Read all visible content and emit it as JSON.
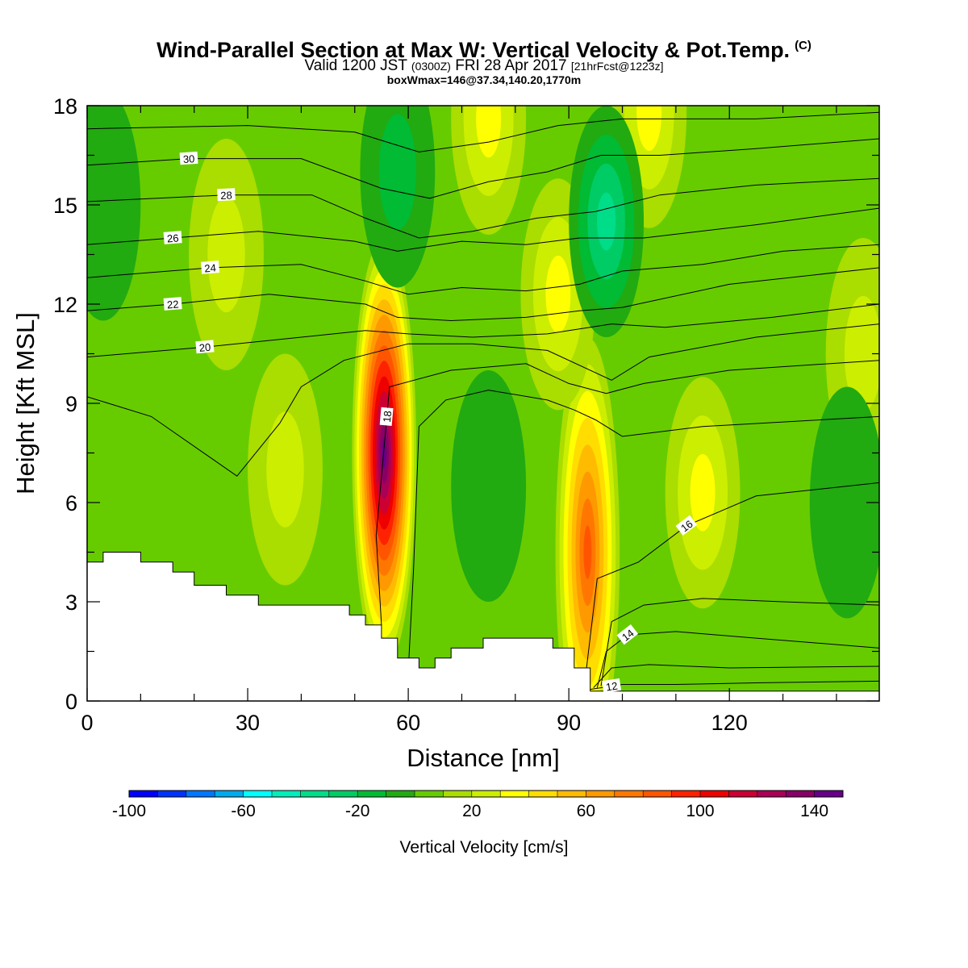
{
  "chart_data": {
    "type": "heatmap",
    "title": "Wind-Parallel Section at Max W: Vertical Velocity & Pot.Temp.",
    "title_mark": "(C)",
    "subtitle_main": "Valid 1200 JST",
    "subtitle_z": "(0300Z)",
    "subtitle_date": "FRI 28 Apr 2017",
    "subtitle_fcst": "[21hrFcst@1223z]",
    "subtitle3": "boxWmax=146@37.34,140.20,1770m",
    "xlabel": "Distance [nm]",
    "ylabel": "Height [Kft MSL]",
    "xlim": [
      0,
      148
    ],
    "ylim": [
      0,
      18
    ],
    "x_ticks": [
      0,
      30,
      60,
      90,
      120
    ],
    "y_ticks": [
      0,
      3,
      6,
      9,
      12,
      15,
      18
    ],
    "colorbar": {
      "title": "Vertical Velocity [cm/s]",
      "min": -100,
      "max": 150,
      "step": 10,
      "tick_labels": [
        "-100",
        "-60",
        "-20",
        "20",
        "60",
        "100",
        "140"
      ],
      "colors": [
        "#0000ff",
        "#0033ff",
        "#0077ff",
        "#00aaee",
        "#00ffff",
        "#00eebb",
        "#00dd88",
        "#00cc66",
        "#00bb33",
        "#22aa11",
        "#66cc00",
        "#aadd00",
        "#ccee00",
        "#ffff00",
        "#ffdd00",
        "#ffbb00",
        "#ff9900",
        "#ff7700",
        "#ff5500",
        "#ff2200",
        "#ee0000",
        "#cc0033",
        "#aa0055",
        "#880066",
        "#660088"
      ]
    },
    "terrain_kft": [
      [
        0,
        4.2
      ],
      [
        3,
        4.2
      ],
      [
        3,
        4.5
      ],
      [
        10,
        4.5
      ],
      [
        10,
        4.2
      ],
      [
        16,
        4.2
      ],
      [
        16,
        3.9
      ],
      [
        20,
        3.9
      ],
      [
        20,
        3.5
      ],
      [
        26,
        3.5
      ],
      [
        26,
        3.2
      ],
      [
        32,
        3.2
      ],
      [
        32,
        2.9
      ],
      [
        49,
        2.9
      ],
      [
        49,
        2.6
      ],
      [
        52,
        2.6
      ],
      [
        52,
        2.3
      ],
      [
        55,
        2.3
      ],
      [
        55,
        1.9
      ],
      [
        58,
        1.9
      ],
      [
        58,
        1.3
      ],
      [
        62,
        1.3
      ],
      [
        62,
        1.0
      ],
      [
        65,
        1.0
      ],
      [
        65,
        1.3
      ],
      [
        68,
        1.3
      ],
      [
        68,
        1.6
      ],
      [
        74,
        1.6
      ],
      [
        74,
        1.9
      ],
      [
        87,
        1.9
      ],
      [
        87,
        1.6
      ],
      [
        91,
        1.6
      ],
      [
        91,
        1.0
      ],
      [
        94,
        1.0
      ],
      [
        94,
        0.3
      ],
      [
        148,
        0.3
      ]
    ],
    "w_features": [
      {
        "x": 55.5,
        "y": 7.5,
        "w": 140
      },
      {
        "x": 93.5,
        "y": 4.5,
        "w": 80
      },
      {
        "x": 75,
        "y": 17.6,
        "w": 35
      },
      {
        "x": 105,
        "y": 17.8,
        "w": 30
      },
      {
        "x": 88,
        "y": 12.3,
        "w": 30
      },
      {
        "x": 97,
        "y": 14.5,
        "w": -45
      },
      {
        "x": 58,
        "y": 16.0,
        "w": -25
      },
      {
        "x": 115,
        "y": 6.3,
        "w": 30
      },
      {
        "x": 37,
        "y": 7.0,
        "w": 25
      },
      {
        "x": 26,
        "y": 13.5,
        "w": 20
      },
      {
        "x": 145,
        "y": 10.5,
        "w": 25
      },
      {
        "x": 75,
        "y": 6.5,
        "w": -15
      },
      {
        "x": 3,
        "y": 15.0,
        "w": -12
      },
      {
        "x": 142,
        "y": 6.0,
        "w": -12
      }
    ],
    "theta_contours": [
      {
        "value": 12,
        "label": "12",
        "label_x": 98,
        "points": [
          [
            94,
            0.35
          ],
          [
            100,
            0.5
          ],
          [
            110,
            0.5
          ],
          [
            125,
            0.55
          ],
          [
            148,
            0.6
          ]
        ]
      },
      {
        "value": 13,
        "label": "",
        "label_x": null,
        "points": [
          [
            94.6,
            0.4
          ],
          [
            98,
            1.0
          ],
          [
            105,
            1.1
          ],
          [
            120,
            1.0
          ],
          [
            148,
            1.05
          ]
        ]
      },
      {
        "value": 14,
        "label": "14",
        "label_x": 101,
        "points": [
          [
            95.3,
            0.4
          ],
          [
            97,
            1.5
          ],
          [
            101,
            2.0
          ],
          [
            110,
            2.1
          ],
          [
            125,
            1.9
          ],
          [
            148,
            1.6
          ]
        ]
      },
      {
        "value": 15,
        "label": "",
        "label_x": null,
        "points": [
          [
            96,
            0.45
          ],
          [
            98,
            2.4
          ],
          [
            104,
            2.9
          ],
          [
            115,
            3.1
          ],
          [
            130,
            3.0
          ],
          [
            148,
            2.9
          ]
        ]
      },
      {
        "value": 16,
        "label": "16",
        "label_x": 112,
        "points": [
          [
            93.3,
            1.0
          ],
          [
            95.3,
            3.7
          ],
          [
            103,
            4.2
          ],
          [
            112,
            5.3
          ],
          [
            125,
            6.2
          ],
          [
            148,
            6.6
          ]
        ]
      },
      {
        "value": 17,
        "label": "",
        "label_x": null,
        "points": [
          [
            60,
            0.9
          ],
          [
            61,
            4
          ],
          [
            62,
            8.3
          ],
          [
            67,
            9.1
          ],
          [
            75,
            9.4
          ],
          [
            86,
            9.1
          ],
          [
            91,
            8.8
          ],
          [
            95,
            8.5
          ],
          [
            100,
            8.0
          ],
          [
            115,
            8.3
          ],
          [
            148,
            8.6
          ]
        ]
      },
      {
        "value": 18,
        "label": "18",
        "label_x": 56,
        "points": [
          [
            55,
            2.3
          ],
          [
            54,
            5.0
          ],
          [
            56.5,
            9.5
          ],
          [
            68,
            10.0
          ],
          [
            82,
            10.2
          ],
          [
            90,
            9.6
          ],
          [
            97,
            9.3
          ],
          [
            104,
            9.6
          ],
          [
            120,
            10.0
          ],
          [
            148,
            10.3
          ]
        ]
      },
      {
        "value": 19,
        "label": "",
        "label_x": null,
        "points": [
          [
            0,
            9.2
          ],
          [
            12,
            8.6
          ],
          [
            28,
            6.8
          ],
          [
            36,
            8.4
          ],
          [
            40,
            9.5
          ],
          [
            48,
            10.3
          ],
          [
            60,
            10.8
          ],
          [
            72,
            10.8
          ],
          [
            86,
            10.6
          ],
          [
            98,
            9.7
          ],
          [
            105,
            10.4
          ],
          [
            125,
            11.0
          ],
          [
            148,
            11.4
          ]
        ]
      },
      {
        "value": 20,
        "label": "20",
        "label_x": 22,
        "points": [
          [
            0,
            10.4
          ],
          [
            22,
            10.7
          ],
          [
            40,
            11.0
          ],
          [
            52,
            11.2
          ],
          [
            60,
            11.1
          ],
          [
            72,
            11.0
          ],
          [
            86,
            11.1
          ],
          [
            98,
            11.4
          ],
          [
            108,
            11.3
          ],
          [
            128,
            11.6
          ],
          [
            148,
            12.0
          ]
        ]
      },
      {
        "value": 22,
        "label": "22",
        "label_x": 16,
        "points": [
          [
            0,
            11.8
          ],
          [
            16,
            12.0
          ],
          [
            34,
            12.3
          ],
          [
            52,
            12.0
          ],
          [
            58,
            11.6
          ],
          [
            68,
            11.5
          ],
          [
            82,
            11.6
          ],
          [
            92,
            11.8
          ],
          [
            100,
            11.9
          ],
          [
            120,
            12.6
          ],
          [
            148,
            13.1
          ]
        ]
      },
      {
        "value": 24,
        "label": "24",
        "label_x": 23,
        "points": [
          [
            0,
            12.8
          ],
          [
            23,
            13.1
          ],
          [
            40,
            13.2
          ],
          [
            52,
            12.7
          ],
          [
            60,
            12.3
          ],
          [
            70,
            12.5
          ],
          [
            82,
            12.4
          ],
          [
            92,
            12.6
          ],
          [
            100,
            13.0
          ],
          [
            115,
            13.2
          ],
          [
            130,
            13.6
          ],
          [
            148,
            13.8
          ]
        ]
      },
      {
        "value": 26,
        "label": "26",
        "label_x": 16,
        "points": [
          [
            0,
            13.8
          ],
          [
            16,
            14.0
          ],
          [
            32,
            14.2
          ],
          [
            50,
            13.9
          ],
          [
            58,
            13.6
          ],
          [
            70,
            13.9
          ],
          [
            82,
            13.8
          ],
          [
            92,
            14.0
          ],
          [
            104,
            14.0
          ],
          [
            125,
            14.4
          ],
          [
            148,
            14.9
          ]
        ]
      },
      {
        "value": 28,
        "label": "28",
        "label_x": 26,
        "points": [
          [
            0,
            15.1
          ],
          [
            26,
            15.3
          ],
          [
            42,
            15.3
          ],
          [
            52,
            14.6
          ],
          [
            62,
            14.0
          ],
          [
            72,
            14.2
          ],
          [
            84,
            14.6
          ],
          [
            95,
            14.8
          ],
          [
            107,
            15.3
          ],
          [
            125,
            15.6
          ],
          [
            148,
            15.8
          ]
        ]
      },
      {
        "value": 30,
        "label": "30",
        "label_x": 19,
        "points": [
          [
            0,
            16.2
          ],
          [
            19,
            16.4
          ],
          [
            40,
            16.4
          ],
          [
            55,
            15.5
          ],
          [
            64,
            15.2
          ],
          [
            75,
            15.7
          ],
          [
            86,
            16.0
          ],
          [
            96,
            16.5
          ],
          [
            107,
            16.5
          ],
          [
            125,
            16.7
          ],
          [
            148,
            17.0
          ]
        ]
      },
      {
        "value": 32,
        "label": "",
        "label_x": null,
        "points": [
          [
            0,
            17.3
          ],
          [
            30,
            17.4
          ],
          [
            50,
            17.2
          ],
          [
            62,
            16.6
          ],
          [
            75,
            16.9
          ],
          [
            88,
            17.4
          ],
          [
            100,
            17.6
          ],
          [
            125,
            17.6
          ],
          [
            148,
            17.8
          ]
        ]
      }
    ]
  }
}
